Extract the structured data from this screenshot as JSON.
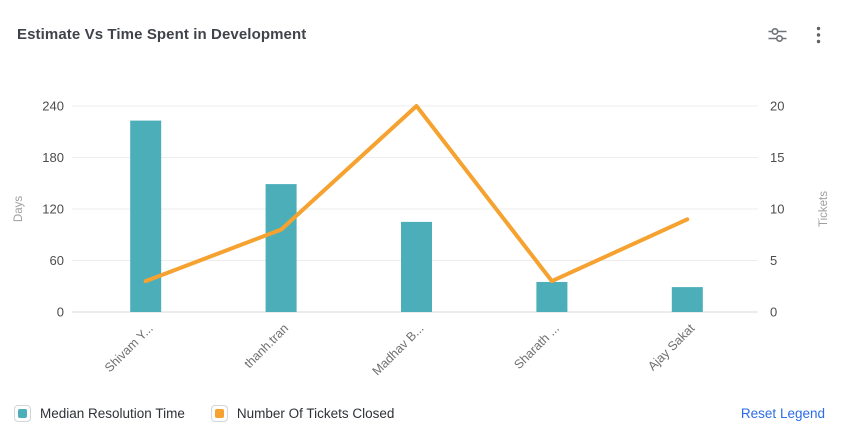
{
  "header": {
    "title": "Estimate Vs Time Spent in Development",
    "icons": [
      {
        "name": "filter-sliders-icon"
      },
      {
        "name": "kebab-menu-icon"
      }
    ]
  },
  "chart_data": {
    "type": "combo-bar-line",
    "categories": [
      "Shivam Y...",
      "thanh.tran",
      "Madhav B...",
      "Sharath ...",
      "Ajay Sakat"
    ],
    "series": [
      {
        "name": "Median Resolution Time",
        "type": "bar",
        "axis": "left",
        "color": "#4BAEB9",
        "values": [
          223,
          149,
          105,
          35,
          29
        ]
      },
      {
        "name": "Number Of Tickets Closed",
        "type": "line",
        "axis": "right",
        "color": "#F6A231",
        "values": [
          3,
          8,
          20,
          3,
          9
        ]
      }
    ],
    "left_axis": {
      "label": "Days",
      "ticks": [
        0,
        60,
        120,
        180,
        240
      ],
      "min": 0,
      "max": 240
    },
    "right_axis": {
      "label": "Tickets",
      "ticks": [
        0,
        5,
        10,
        15,
        20
      ],
      "min": 0,
      "max": 20
    },
    "grid": true,
    "legend_position": "bottom"
  },
  "legend": {
    "items": [
      {
        "label": "Median Resolution Time",
        "color": "#4BAEB9"
      },
      {
        "label": "Number Of Tickets Closed",
        "color": "#F6A231"
      }
    ],
    "reset_label": "Reset Legend"
  },
  "colors": {
    "bar": "#4BAEB9",
    "line": "#F6A231",
    "reset_link": "#2B6DE8",
    "title_text": "#3f434a",
    "tick_text": "#4d4d4d",
    "axis_title_text": "#9e9e9e",
    "category_text": "#6f6f6f"
  }
}
